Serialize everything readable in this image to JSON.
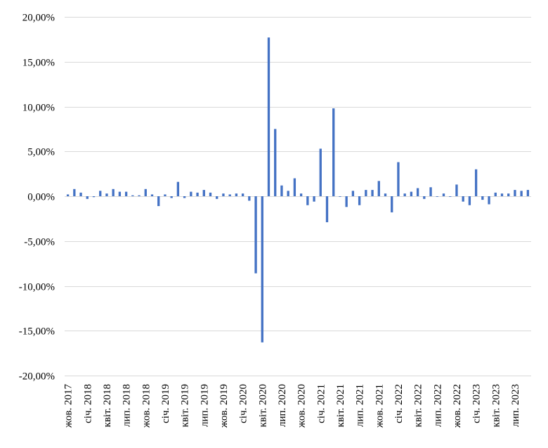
{
  "chart_data": {
    "type": "bar",
    "title": "",
    "xlabel": "",
    "ylabel": "",
    "ylim": [
      -20,
      20
    ],
    "yticks": [
      20,
      15,
      10,
      5,
      0,
      -5,
      -10,
      -15,
      -20
    ],
    "ytick_labels": [
      "20,00%",
      "15,00%",
      "10,00%",
      "5,00%",
      "0,00%",
      "-5,00%",
      "-10,00%",
      "-15,00%",
      "-20,00%"
    ],
    "grid": "horizontal",
    "legend": "none",
    "bar_color": "#4472C4",
    "x_tick_labels": [
      {
        "index": 0,
        "label": "жов. 2017"
      },
      {
        "index": 3,
        "label": "січ. 2018"
      },
      {
        "index": 6,
        "label": "квіт. 2018"
      },
      {
        "index": 9,
        "label": "лип. 2018"
      },
      {
        "index": 12,
        "label": "жов. 2018"
      },
      {
        "index": 15,
        "label": "січ. 2019"
      },
      {
        "index": 18,
        "label": "квіт. 2019"
      },
      {
        "index": 21,
        "label": "лип. 2019"
      },
      {
        "index": 24,
        "label": "жов. 2019"
      },
      {
        "index": 27,
        "label": "січ. 2020"
      },
      {
        "index": 30,
        "label": "квіт. 2020"
      },
      {
        "index": 33,
        "label": "лип. 2020"
      },
      {
        "index": 36,
        "label": "жов. 2020"
      },
      {
        "index": 39,
        "label": "січ. 2021"
      },
      {
        "index": 42,
        "label": "квіт. 2021"
      },
      {
        "index": 45,
        "label": "лип. 2021"
      },
      {
        "index": 48,
        "label": "жов. 2021"
      },
      {
        "index": 51,
        "label": "січ. 2022"
      },
      {
        "index": 54,
        "label": "квіт. 2022"
      },
      {
        "index": 57,
        "label": "лип. 2022"
      },
      {
        "index": 60,
        "label": "жов. 2022"
      },
      {
        "index": 63,
        "label": "січ. 2023"
      },
      {
        "index": 66,
        "label": "квіт. 2023"
      },
      {
        "index": 69,
        "label": "лип. 2023"
      }
    ],
    "categories": [
      "2017-10",
      "2017-11",
      "2017-12",
      "2018-01",
      "2018-02",
      "2018-03",
      "2018-04",
      "2018-05",
      "2018-06",
      "2018-07",
      "2018-08",
      "2018-09",
      "2018-10",
      "2018-11",
      "2018-12",
      "2019-01",
      "2019-02",
      "2019-03",
      "2019-04",
      "2019-05",
      "2019-06",
      "2019-07",
      "2019-08",
      "2019-09",
      "2019-10",
      "2019-11",
      "2019-12",
      "2020-01",
      "2020-02",
      "2020-03",
      "2020-04",
      "2020-05",
      "2020-06",
      "2020-07",
      "2020-08",
      "2020-09",
      "2020-10",
      "2020-11",
      "2020-12",
      "2021-01",
      "2021-02",
      "2021-03",
      "2021-04",
      "2021-05",
      "2021-06",
      "2021-07",
      "2021-08",
      "2021-09",
      "2021-10",
      "2021-11",
      "2021-12",
      "2022-01",
      "2022-02",
      "2022-03",
      "2022-04",
      "2022-05",
      "2022-06",
      "2022-07",
      "2022-08",
      "2022-09",
      "2022-10",
      "2022-11",
      "2022-12",
      "2023-01",
      "2023-02",
      "2023-03",
      "2023-04",
      "2023-05",
      "2023-06",
      "2023-07",
      "2023-08",
      "2023-09"
    ],
    "values": [
      0.2,
      0.8,
      0.4,
      -0.3,
      -0.1,
      0.6,
      0.3,
      0.8,
      0.5,
      0.5,
      0.1,
      0.1,
      0.8,
      0.2,
      -1.1,
      0.2,
      -0.2,
      1.6,
      -0.2,
      0.5,
      0.4,
      0.7,
      0.4,
      -0.3,
      0.3,
      0.2,
      0.3,
      0.3,
      -0.5,
      -8.6,
      -16.3,
      17.7,
      7.5,
      1.2,
      0.6,
      2.0,
      0.3,
      -1.0,
      -0.6,
      5.3,
      -2.9,
      9.8,
      0.0,
      -1.2,
      0.6,
      -1.0,
      0.7,
      0.7,
      1.7,
      0.3,
      -1.8,
      3.8,
      0.3,
      0.5,
      0.9,
      -0.3,
      1.0,
      0.0,
      0.3,
      0.0,
      1.3,
      -0.6,
      -1.0,
      3.0,
      -0.4,
      -0.9,
      0.4,
      0.3,
      0.3,
      0.7,
      0.6,
      0.7
    ]
  }
}
